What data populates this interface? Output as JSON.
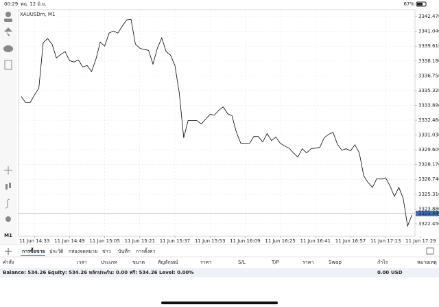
{
  "status_bar": {
    "time": "00:29",
    "date": "พฤ. 12 มิ.ย.",
    "battery": "67%"
  },
  "toolbar": {
    "timeframe": "M1"
  },
  "chart_data": {
    "type": "line",
    "title": "XAUUSDm, M1",
    "grid": true,
    "categories": [
      null,
      null,
      null,
      "11 Jun 14:33",
      null,
      null,
      null,
      null,
      null,
      null,
      null,
      "11 Jun 14:49",
      null,
      null,
      null,
      null,
      null,
      null,
      null,
      "11 Jun 15:05",
      null,
      null,
      null,
      null,
      null,
      null,
      null,
      "11 Jun 15:21",
      null,
      null,
      null,
      null,
      null,
      null,
      null,
      "11 Jun 15:37",
      null,
      null,
      null,
      null,
      null,
      null,
      null,
      "11 Jun 15:53",
      null,
      null,
      null,
      null,
      null,
      null,
      null,
      "11 Jun 16:09",
      null,
      null,
      null,
      null,
      null,
      null,
      null,
      "11 Jun 16:25",
      null,
      null,
      null,
      null,
      null,
      null,
      null,
      "11 Jun 16:41",
      null,
      null,
      null,
      null,
      null,
      null,
      null,
      "11 Jun 16:57",
      null,
      null,
      null,
      null,
      null,
      null,
      null,
      "11 Jun 17:13",
      null,
      null,
      null,
      null,
      null,
      null,
      null,
      "11 Jun 17:29"
    ],
    "series": [
      {
        "name": "XAUUSDm",
        "color": "#000000",
        "values": [
          3334.75,
          3334.15,
          3334.15,
          3334.89,
          3335.55,
          3339.94,
          3340.34,
          3339.81,
          3338.48,
          3338.81,
          3339.08,
          3338.21,
          3338.08,
          3338.28,
          3337.61,
          3337.75,
          3337.15,
          3338.34,
          3340.01,
          3339.61,
          3340.87,
          3341.07,
          3340.87,
          3341.54,
          3342.14,
          3342.2,
          3339.81,
          3339.41,
          3339.28,
          3339.21,
          3337.88,
          3339.41,
          3340.41,
          3339.08,
          3338.74,
          3337.75,
          3335.08,
          3330.76,
          3332.42,
          3332.42,
          3332.42,
          3332.09,
          3332.56,
          3333.02,
          3332.96,
          3333.42,
          3333.75,
          3333.09,
          3332.89,
          3331.29,
          3330.23,
          3330.23,
          3330.23,
          3330.89,
          3330.89,
          3330.36,
          3331.16,
          3330.49,
          3330.83,
          3330.23,
          3329.96,
          3329.76,
          3329.3,
          3328.9,
          3329.7,
          3329.3,
          3329.7,
          3329.76,
          3329.83,
          3330.76,
          3331.09,
          3331.29,
          3330.16,
          3329.56,
          3329.7,
          3329.5,
          3330.09,
          3329.3,
          3327.1,
          3326.44,
          3325.97,
          3326.83,
          3326.77,
          3326.9,
          3326.1,
          3325.1,
          3325.97,
          3324.91,
          3322.24,
          3323.31,
          null,
          null
        ]
      }
    ],
    "ylim": [
      3321.25,
      3343.14
    ],
    "yticks": [
      {
        "value": 3342.47,
        "label": "3342.470"
      },
      {
        "value": 3341.04,
        "label": "3341.040"
      },
      {
        "value": 3339.61,
        "label": "3339.610"
      },
      {
        "value": 3338.18,
        "label": "3338.180"
      },
      {
        "value": 3336.75,
        "label": "3336.750"
      },
      {
        "value": 3335.32,
        "label": "3335.320"
      },
      {
        "value": 3333.89,
        "label": "3333.890"
      },
      {
        "value": 3332.46,
        "label": "3332.460"
      },
      {
        "value": 3331.03,
        "label": "3331.030"
      },
      {
        "value": 3329.6,
        "label": "3329.600"
      },
      {
        "value": 3328.17,
        "label": "3328.170"
      },
      {
        "value": 3326.74,
        "label": "3326.740"
      },
      {
        "value": 3325.31,
        "label": "3325.310"
      },
      {
        "value": 3323.88,
        "label": "3323.880"
      },
      {
        "value": 3322.45,
        "label": "3322.450"
      }
    ],
    "current_price": 3323.449
  },
  "tabs": [
    "การซื้อขาย",
    "ประวัติ",
    "กล่องจดหมาย",
    "ข่าว",
    "บันทึก",
    "การตั้งค่า"
  ],
  "columns": [
    "คำสั่ง",
    "เวลา",
    "ประเภท",
    "ขนาด",
    "สัญลักษณ์",
    "ราคา",
    "S/L",
    "T/P",
    "ราคา",
    "Swap",
    "กำไร",
    "หมายเหตุ"
  ],
  "balance": {
    "text": "Balance: 534.26 Equity: 534.26 หลักประกัน: 0.00 ฟรี: 534.26 Level: 0.00%",
    "profit": "0.00",
    "currency": "USD"
  }
}
